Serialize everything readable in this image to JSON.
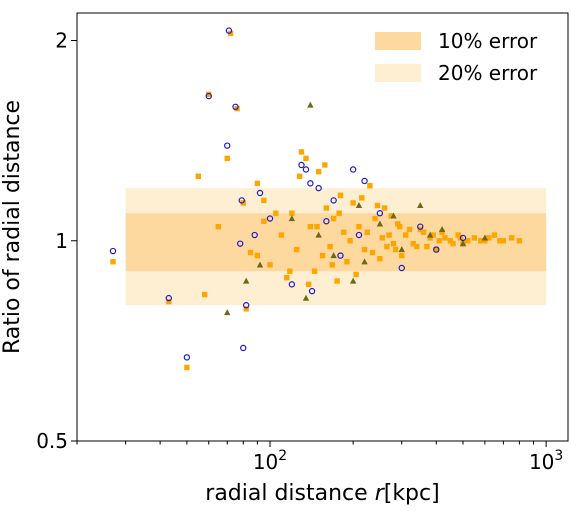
{
  "chart_data": {
    "type": "scatter",
    "xlabel": "radial distance ",
    "xlabel_var": "r",
    "xlabel_unit": "[kpc]",
    "ylabel": "Ratio of radial distance",
    "x_scale": "log",
    "y_scale": "log",
    "xlim": [
      20,
      1200
    ],
    "ylim": [
      0.5,
      2.2
    ],
    "x_ticks": [
      {
        "value": 100,
        "base": "10",
        "exp": "2"
      },
      {
        "value": 1000,
        "base": "10",
        "exp": "3"
      }
    ],
    "y_ticks": [
      {
        "value": 0.5,
        "label": "0.5"
      },
      {
        "value": 1,
        "label": "1"
      },
      {
        "value": 2,
        "label": "2"
      }
    ],
    "bands": [
      {
        "name": "10% error",
        "x_range": [
          30,
          1000
        ],
        "y_range": [
          0.9,
          1.1
        ],
        "color": "#fdd9a0"
      },
      {
        "name": "20% error",
        "x_range": [
          30,
          1000
        ],
        "y_range": [
          0.8,
          1.2
        ],
        "color": "#feefd2"
      }
    ],
    "legend_position": "top-right",
    "colors": {
      "circle": "#1a1acc",
      "square": "#ffa500",
      "triangle": "#6b6b1a"
    },
    "series": [
      {
        "marker": "circle",
        "points": [
          [
            27,
            0.965
          ],
          [
            43,
            0.82
          ],
          [
            50,
            0.668
          ],
          [
            60,
            1.65
          ],
          [
            70,
            1.39
          ],
          [
            71,
            2.07
          ],
          [
            75,
            1.59
          ],
          [
            78,
            0.99
          ],
          [
            79,
            1.15
          ],
          [
            80,
            0.69
          ],
          [
            82,
            0.8
          ],
          [
            88,
            1.02
          ],
          [
            92,
            1.18
          ],
          [
            100,
            1.08
          ],
          [
            120,
            0.86
          ],
          [
            130,
            1.3
          ],
          [
            135,
            1.28
          ],
          [
            140,
            1.22
          ],
          [
            142,
            0.84
          ],
          [
            150,
            1.2
          ],
          [
            160,
            1.07
          ],
          [
            170,
            1.15
          ],
          [
            180,
            0.95
          ],
          [
            200,
            1.28
          ],
          [
            210,
            1.02
          ],
          [
            220,
            1.23
          ],
          [
            250,
            1.1
          ],
          [
            300,
            0.91
          ],
          [
            350,
            1.05
          ],
          [
            400,
            0.97
          ],
          [
            500,
            1.01
          ]
        ]
      },
      {
        "marker": "square",
        "points": [
          [
            27,
            0.93
          ],
          [
            43,
            0.81
          ],
          [
            50,
            0.645
          ],
          [
            55,
            1.25
          ],
          [
            58,
            0.83
          ],
          [
            60,
            1.66
          ],
          [
            65,
            1.05
          ],
          [
            70,
            1.33
          ],
          [
            72,
            2.05
          ],
          [
            76,
            1.58
          ],
          [
            80,
            1.14
          ],
          [
            82,
            0.79
          ],
          [
            85,
            0.96
          ],
          [
            90,
            1.22
          ],
          [
            95,
            1.07
          ],
          [
            100,
            0.92
          ],
          [
            110,
            1.02
          ],
          [
            115,
            0.88
          ],
          [
            120,
            1.1
          ],
          [
            125,
            0.97
          ],
          [
            130,
            1.36
          ],
          [
            135,
            1.33
          ],
          [
            140,
            1.05
          ],
          [
            145,
            0.9
          ],
          [
            150,
            1.27
          ],
          [
            155,
            0.95
          ],
          [
            160,
            1.12
          ],
          [
            165,
            0.98
          ],
          [
            170,
            1.08
          ],
          [
            175,
            0.87
          ],
          [
            180,
            1.17
          ],
          [
            185,
            1.03
          ],
          [
            190,
            0.93
          ],
          [
            200,
            1.14
          ],
          [
            210,
            1.05
          ],
          [
            220,
            0.97
          ],
          [
            230,
            1.21
          ],
          [
            240,
            1.08
          ],
          [
            250,
            0.94
          ],
          [
            260,
            1.12
          ],
          [
            270,
            1.02
          ],
          [
            280,
            0.99
          ],
          [
            290,
            1.06
          ],
          [
            300,
            0.95
          ],
          [
            320,
            1.04
          ],
          [
            340,
            0.98
          ],
          [
            360,
            1.03
          ],
          [
            380,
            1.01
          ],
          [
            400,
            0.97
          ],
          [
            420,
            1.03
          ],
          [
            450,
            1.0
          ],
          [
            480,
            1.02
          ],
          [
            500,
            0.99
          ],
          [
            550,
            1.01
          ],
          [
            600,
            1.0
          ],
          [
            650,
            1.02
          ],
          [
            700,
            1.0
          ],
          [
            750,
            1.01
          ],
          [
            800,
            1.0
          ],
          [
            90,
            0.95
          ],
          [
            95,
            1.15
          ],
          [
            105,
            1.1
          ],
          [
            118,
            0.9
          ],
          [
            128,
            1.25
          ],
          [
            138,
            0.86
          ],
          [
            148,
            1.05
          ],
          [
            158,
            1.3
          ],
          [
            168,
            0.92
          ],
          [
            178,
            1.1
          ],
          [
            195,
            1.0
          ],
          [
            205,
            0.89
          ],
          [
            215,
            1.16
          ],
          [
            225,
            1.03
          ],
          [
            235,
            0.96
          ],
          [
            245,
            1.13
          ],
          [
            255,
            1.01
          ],
          [
            265,
            0.98
          ],
          [
            275,
            1.09
          ],
          [
            285,
            0.97
          ],
          [
            295,
            1.05
          ],
          [
            310,
            1.02
          ],
          [
            330,
            0.99
          ],
          [
            350,
            1.04
          ],
          [
            370,
            0.98
          ],
          [
            390,
            1.02
          ],
          [
            410,
            1.0
          ],
          [
            430,
            1.01
          ],
          [
            460,
            0.99
          ],
          [
            490,
            1.01
          ],
          [
            520,
            1.0
          ],
          [
            580,
            1.0
          ],
          [
            620,
            1.01
          ],
          [
            680,
            1.0
          ]
        ]
      },
      {
        "marker": "triangle",
        "points": [
          [
            70,
            0.78
          ],
          [
            82,
            0.87
          ],
          [
            92,
            0.92
          ],
          [
            120,
            1.08
          ],
          [
            135,
            0.82
          ],
          [
            140,
            1.6
          ],
          [
            150,
            1.02
          ],
          [
            170,
            0.95
          ],
          [
            200,
            0.87
          ],
          [
            210,
            1.13
          ],
          [
            220,
            0.93
          ],
          [
            250,
            1.06
          ],
          [
            280,
            1.09
          ],
          [
            300,
            0.97
          ],
          [
            350,
            1.13
          ],
          [
            380,
            1.02
          ],
          [
            420,
            1.04
          ],
          [
            500,
            0.99
          ],
          [
            600,
            1.01
          ]
        ]
      }
    ]
  }
}
